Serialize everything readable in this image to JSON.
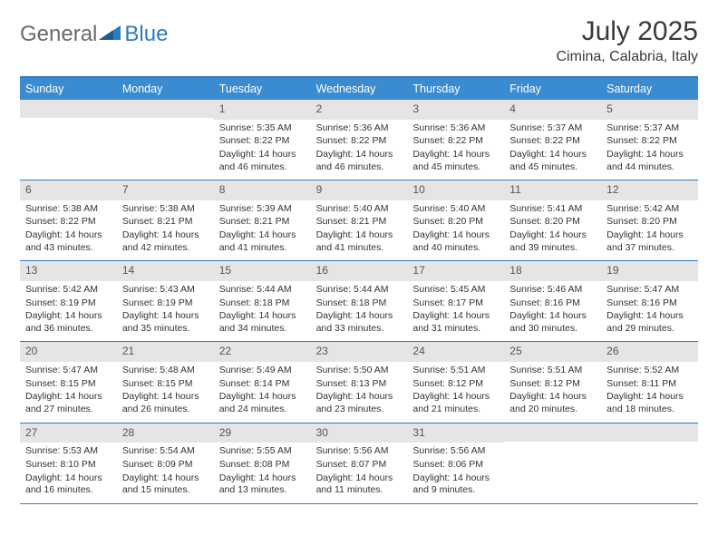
{
  "logo": {
    "text1": "General",
    "text2": "Blue"
  },
  "title": "July 2025",
  "subtitle": "Cimina, Calabria, Italy",
  "headerColor": "#3b8bd0",
  "borderColor": "#2f7abf",
  "dayNumBg": "#e5e5e5",
  "dayHeaders": [
    "Sunday",
    "Monday",
    "Tuesday",
    "Wednesday",
    "Thursday",
    "Friday",
    "Saturday"
  ],
  "labels": {
    "sunrise": "Sunrise:",
    "sunset": "Sunset:",
    "daylight": "Daylight:"
  },
  "weeks": [
    [
      null,
      null,
      {
        "n": "1",
        "sunrise": "5:35 AM",
        "sunset": "8:22 PM",
        "daylight": "14 hours and 46 minutes."
      },
      {
        "n": "2",
        "sunrise": "5:36 AM",
        "sunset": "8:22 PM",
        "daylight": "14 hours and 46 minutes."
      },
      {
        "n": "3",
        "sunrise": "5:36 AM",
        "sunset": "8:22 PM",
        "daylight": "14 hours and 45 minutes."
      },
      {
        "n": "4",
        "sunrise": "5:37 AM",
        "sunset": "8:22 PM",
        "daylight": "14 hours and 45 minutes."
      },
      {
        "n": "5",
        "sunrise": "5:37 AM",
        "sunset": "8:22 PM",
        "daylight": "14 hours and 44 minutes."
      }
    ],
    [
      {
        "n": "6",
        "sunrise": "5:38 AM",
        "sunset": "8:22 PM",
        "daylight": "14 hours and 43 minutes."
      },
      {
        "n": "7",
        "sunrise": "5:38 AM",
        "sunset": "8:21 PM",
        "daylight": "14 hours and 42 minutes."
      },
      {
        "n": "8",
        "sunrise": "5:39 AM",
        "sunset": "8:21 PM",
        "daylight": "14 hours and 41 minutes."
      },
      {
        "n": "9",
        "sunrise": "5:40 AM",
        "sunset": "8:21 PM",
        "daylight": "14 hours and 41 minutes."
      },
      {
        "n": "10",
        "sunrise": "5:40 AM",
        "sunset": "8:20 PM",
        "daylight": "14 hours and 40 minutes."
      },
      {
        "n": "11",
        "sunrise": "5:41 AM",
        "sunset": "8:20 PM",
        "daylight": "14 hours and 39 minutes."
      },
      {
        "n": "12",
        "sunrise": "5:42 AM",
        "sunset": "8:20 PM",
        "daylight": "14 hours and 37 minutes."
      }
    ],
    [
      {
        "n": "13",
        "sunrise": "5:42 AM",
        "sunset": "8:19 PM",
        "daylight": "14 hours and 36 minutes."
      },
      {
        "n": "14",
        "sunrise": "5:43 AM",
        "sunset": "8:19 PM",
        "daylight": "14 hours and 35 minutes."
      },
      {
        "n": "15",
        "sunrise": "5:44 AM",
        "sunset": "8:18 PM",
        "daylight": "14 hours and 34 minutes."
      },
      {
        "n": "16",
        "sunrise": "5:44 AM",
        "sunset": "8:18 PM",
        "daylight": "14 hours and 33 minutes."
      },
      {
        "n": "17",
        "sunrise": "5:45 AM",
        "sunset": "8:17 PM",
        "daylight": "14 hours and 31 minutes."
      },
      {
        "n": "18",
        "sunrise": "5:46 AM",
        "sunset": "8:16 PM",
        "daylight": "14 hours and 30 minutes."
      },
      {
        "n": "19",
        "sunrise": "5:47 AM",
        "sunset": "8:16 PM",
        "daylight": "14 hours and 29 minutes."
      }
    ],
    [
      {
        "n": "20",
        "sunrise": "5:47 AM",
        "sunset": "8:15 PM",
        "daylight": "14 hours and 27 minutes."
      },
      {
        "n": "21",
        "sunrise": "5:48 AM",
        "sunset": "8:15 PM",
        "daylight": "14 hours and 26 minutes."
      },
      {
        "n": "22",
        "sunrise": "5:49 AM",
        "sunset": "8:14 PM",
        "daylight": "14 hours and 24 minutes."
      },
      {
        "n": "23",
        "sunrise": "5:50 AM",
        "sunset": "8:13 PM",
        "daylight": "14 hours and 23 minutes."
      },
      {
        "n": "24",
        "sunrise": "5:51 AM",
        "sunset": "8:12 PM",
        "daylight": "14 hours and 21 minutes."
      },
      {
        "n": "25",
        "sunrise": "5:51 AM",
        "sunset": "8:12 PM",
        "daylight": "14 hours and 20 minutes."
      },
      {
        "n": "26",
        "sunrise": "5:52 AM",
        "sunset": "8:11 PM",
        "daylight": "14 hours and 18 minutes."
      }
    ],
    [
      {
        "n": "27",
        "sunrise": "5:53 AM",
        "sunset": "8:10 PM",
        "daylight": "14 hours and 16 minutes."
      },
      {
        "n": "28",
        "sunrise": "5:54 AM",
        "sunset": "8:09 PM",
        "daylight": "14 hours and 15 minutes."
      },
      {
        "n": "29",
        "sunrise": "5:55 AM",
        "sunset": "8:08 PM",
        "daylight": "14 hours and 13 minutes."
      },
      {
        "n": "30",
        "sunrise": "5:56 AM",
        "sunset": "8:07 PM",
        "daylight": "14 hours and 11 minutes."
      },
      {
        "n": "31",
        "sunrise": "5:56 AM",
        "sunset": "8:06 PM",
        "daylight": "14 hours and 9 minutes."
      },
      null,
      null
    ]
  ]
}
